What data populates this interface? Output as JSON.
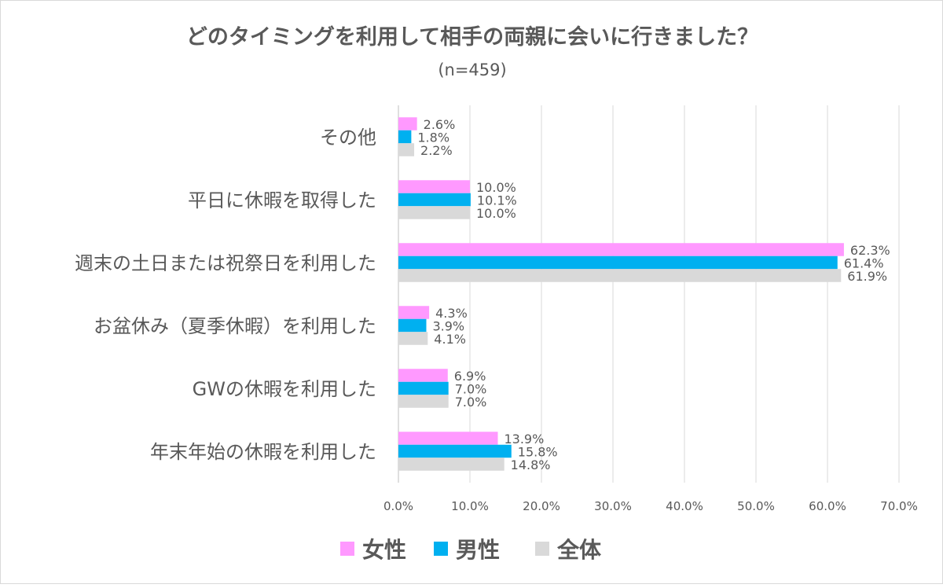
{
  "chart_data": {
    "type": "bar",
    "orientation": "horizontal",
    "title": "どのタイミングを利用して相手の両親に会いに行きました？",
    "subtitle": "(n=459)",
    "categories": [
      "その他",
      "平日に休暇を取得した",
      "週末の土日または祝祭日を利用した",
      "お盆休み（夏季休暇）を利用した",
      "GWの休暇を利用した",
      "年末年始の休暇を利用した"
    ],
    "series": [
      {
        "name": "女性",
        "color": "#FF99FF",
        "values": [
          2.6,
          10.0,
          62.3,
          4.3,
          6.9,
          13.9
        ],
        "labels": [
          "2.6%",
          "10.0%",
          "62.3%",
          "4.3%",
          "6.9%",
          "13.9%"
        ]
      },
      {
        "name": "男性",
        "color": "#00B0F0",
        "values": [
          1.8,
          10.1,
          61.4,
          3.9,
          7.0,
          15.8
        ],
        "labels": [
          "1.8%",
          "10.1%",
          "61.4%",
          "3.9%",
          "7.0%",
          "15.8%"
        ]
      },
      {
        "name": "全体",
        "color": "#D9D9D9",
        "values": [
          2.2,
          10.0,
          61.9,
          4.1,
          7.0,
          14.8
        ],
        "labels": [
          "2.2%",
          "10.0%",
          "61.9%",
          "4.1%",
          "7.0%",
          "14.8%"
        ]
      }
    ],
    "xlim": [
      0,
      70
    ],
    "xticks": [
      "0.0%",
      "10.0%",
      "20.0%",
      "30.0%",
      "40.0%",
      "50.0%",
      "60.0%",
      "70.0%"
    ],
    "grid": true,
    "legend": "bottom"
  }
}
